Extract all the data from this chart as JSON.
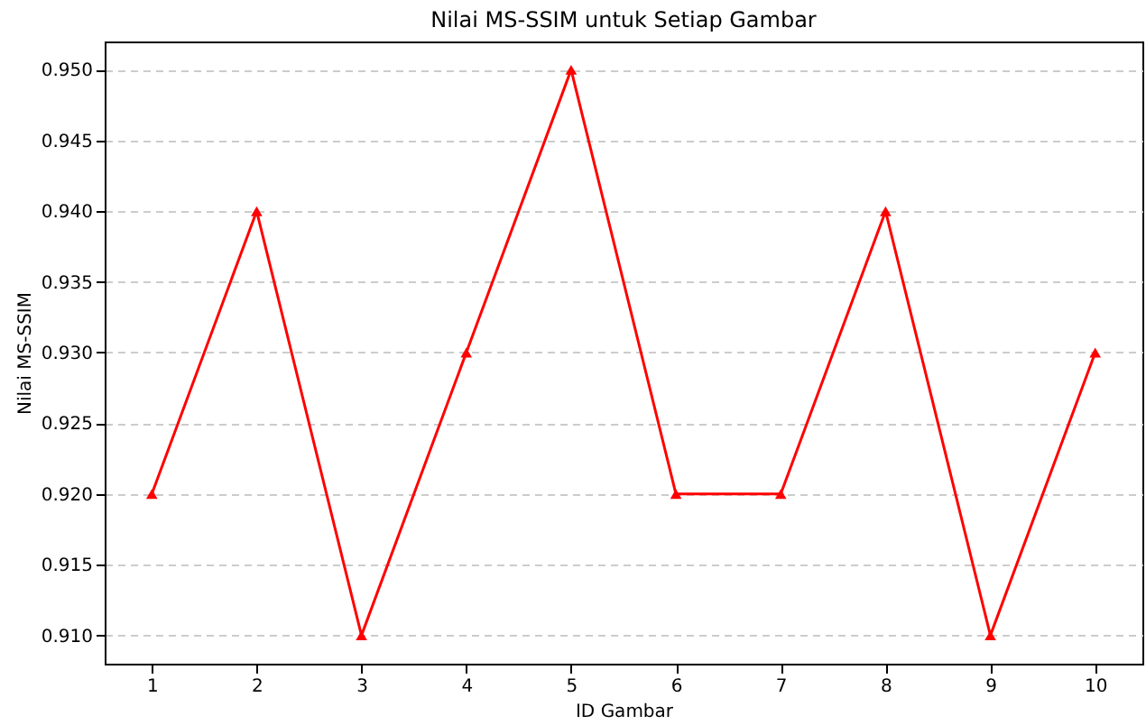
{
  "chart_data": {
    "type": "line",
    "title": "Nilai MS-SSIM untuk Setiap Gambar",
    "xlabel": "ID Gambar",
    "ylabel": "Nilai MS-SSIM",
    "x": [
      1,
      2,
      3,
      4,
      5,
      6,
      7,
      8,
      9,
      10
    ],
    "series": [
      {
        "color": "#ff0000",
        "values": [
          0.92,
          0.94,
          0.91,
          0.93,
          0.95,
          0.92,
          0.92,
          0.94,
          0.91,
          0.93
        ]
      }
    ],
    "xlim": [
      0.55,
      10.45
    ],
    "xticks": [
      1,
      2,
      3,
      4,
      5,
      6,
      7,
      8,
      9,
      10
    ],
    "ylim": [
      0.908,
      0.952
    ],
    "yticks": [
      {
        "value": 0.91,
        "label": "0.910"
      },
      {
        "value": 0.915,
        "label": "0.915"
      },
      {
        "value": 0.92,
        "label": "0.920"
      },
      {
        "value": 0.925,
        "label": "0.925"
      },
      {
        "value": 0.93,
        "label": "0.930"
      },
      {
        "value": 0.935,
        "label": "0.935"
      },
      {
        "value": 0.94,
        "label": "0.940"
      },
      {
        "value": 0.945,
        "label": "0.945"
      },
      {
        "value": 0.95,
        "label": "0.950"
      }
    ],
    "grid": "y",
    "marker": "triangle",
    "line_style": "solid"
  }
}
